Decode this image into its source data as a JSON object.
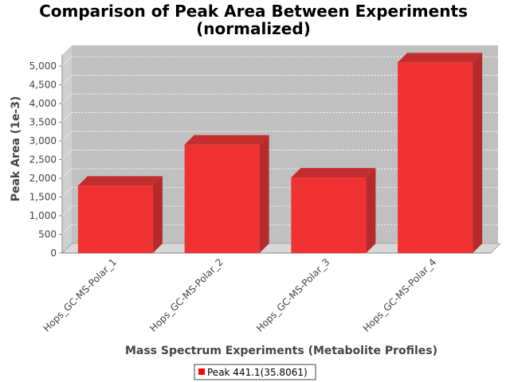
{
  "chart_data": {
    "type": "bar",
    "title": "Comparison of Peak Area Between Experiments",
    "subtitle": "(normalized)",
    "xlabel": "Mass Spectrum Experiments (Metabolite Profiles)",
    "ylabel": "Peak Area (1e-3)",
    "categories": [
      "Hops_GC-MS-Polar_1",
      "Hops_GC-MS-Polar_2",
      "Hops_GC-MS-Polar_3",
      "Hops_GC-MS-Polar_4"
    ],
    "series": [
      {
        "name": "Peak 441.1(35.8061)",
        "values": [
          1800,
          2900,
          2020,
          5100
        ]
      }
    ],
    "ylim": [
      0,
      5300
    ],
    "yticks": [
      0,
      500,
      1000,
      1500,
      2000,
      2500,
      3000,
      3500,
      4000,
      4500,
      5000
    ],
    "ytick_labels": [
      "0",
      "500",
      "1,000",
      "1,500",
      "2,000",
      "2,500",
      "3,000",
      "3,500",
      "4,000",
      "4,500",
      "5,000"
    ],
    "grid": true,
    "legend": "bottom-center",
    "colors": {
      "bar_front": "#f03232",
      "bar_side": "#b52a2a",
      "bar_top": "#c22e2e",
      "plot_back": "#c0c0c0",
      "plot_floor": "#d8d8d8",
      "legend_swatch": "#ff0000"
    }
  }
}
